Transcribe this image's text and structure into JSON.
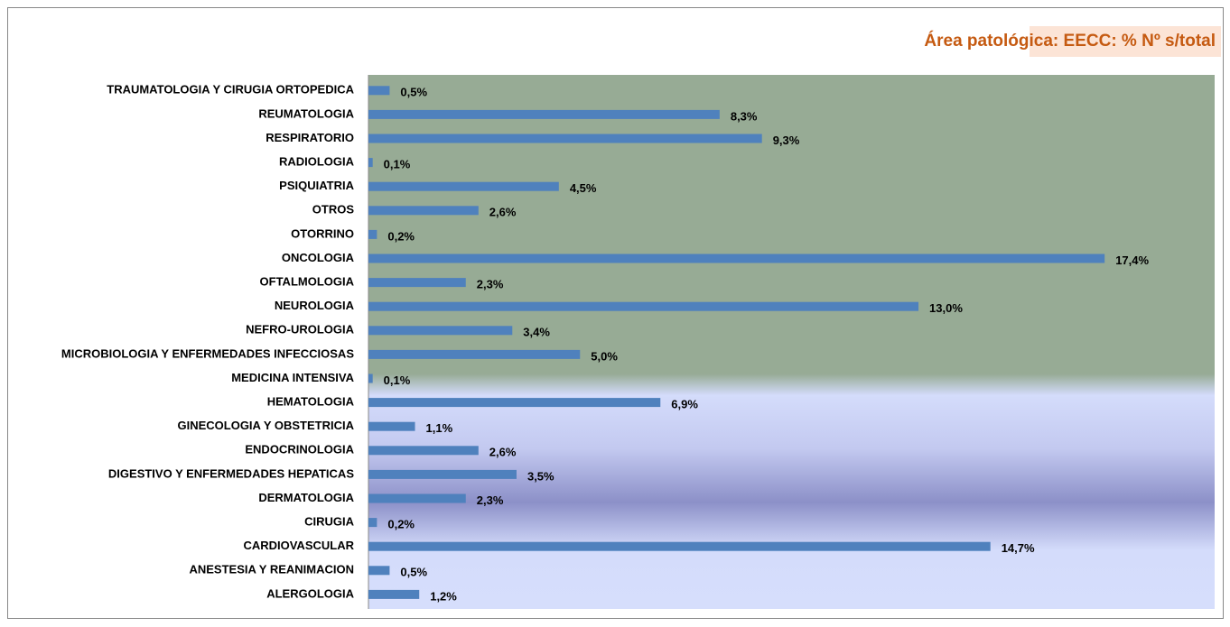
{
  "chart_data": {
    "type": "bar",
    "orientation": "horizontal",
    "title": "Área patológica: EECC: % Nº s/total",
    "categories": [
      "TRAUMATOLOGIA Y CIRUGIA ORTOPEDICA",
      "REUMATOLOGIA",
      "RESPIRATORIO",
      "RADIOLOGIA",
      "PSIQUIATRIA",
      "OTROS",
      "OTORRINO",
      "ONCOLOGIA",
      "OFTALMOLOGIA",
      "NEUROLOGIA",
      "NEFRO-UROLOGIA",
      "MICROBIOLOGIA Y ENFERMEDADES INFECCIOSAS",
      "MEDICINA INTENSIVA",
      "HEMATOLOGIA",
      "GINECOLOGIA Y OBSTETRICIA",
      "ENDOCRINOLOGIA",
      "DIGESTIVO Y ENFERMEDADES HEPATICAS",
      "DERMATOLOGIA",
      "CIRUGIA",
      "CARDIOVASCULAR",
      "ANESTESIA Y REANIMACION",
      "ALERGOLOGIA"
    ],
    "values": [
      0.5,
      8.3,
      9.3,
      0.1,
      4.5,
      2.6,
      0.2,
      17.4,
      2.3,
      13.0,
      3.4,
      5.0,
      0.1,
      6.9,
      1.1,
      2.6,
      3.5,
      2.3,
      0.2,
      14.7,
      0.5,
      1.2
    ],
    "value_labels": [
      "0,5%",
      "8,3%",
      "9,3%",
      "0,1%",
      "4,5%",
      "2,6%",
      "0,2%",
      "17,4%",
      "2,3%",
      "13,0%",
      "3,4%",
      "5,0%",
      "0,1%",
      "6,9%",
      "1,1%",
      "2,6%",
      "3,5%",
      "2,3%",
      "0,2%",
      "14,7%",
      "0,5%",
      "1,2%"
    ],
    "color": "#4f81bd",
    "xlim": [
      0,
      20
    ]
  }
}
